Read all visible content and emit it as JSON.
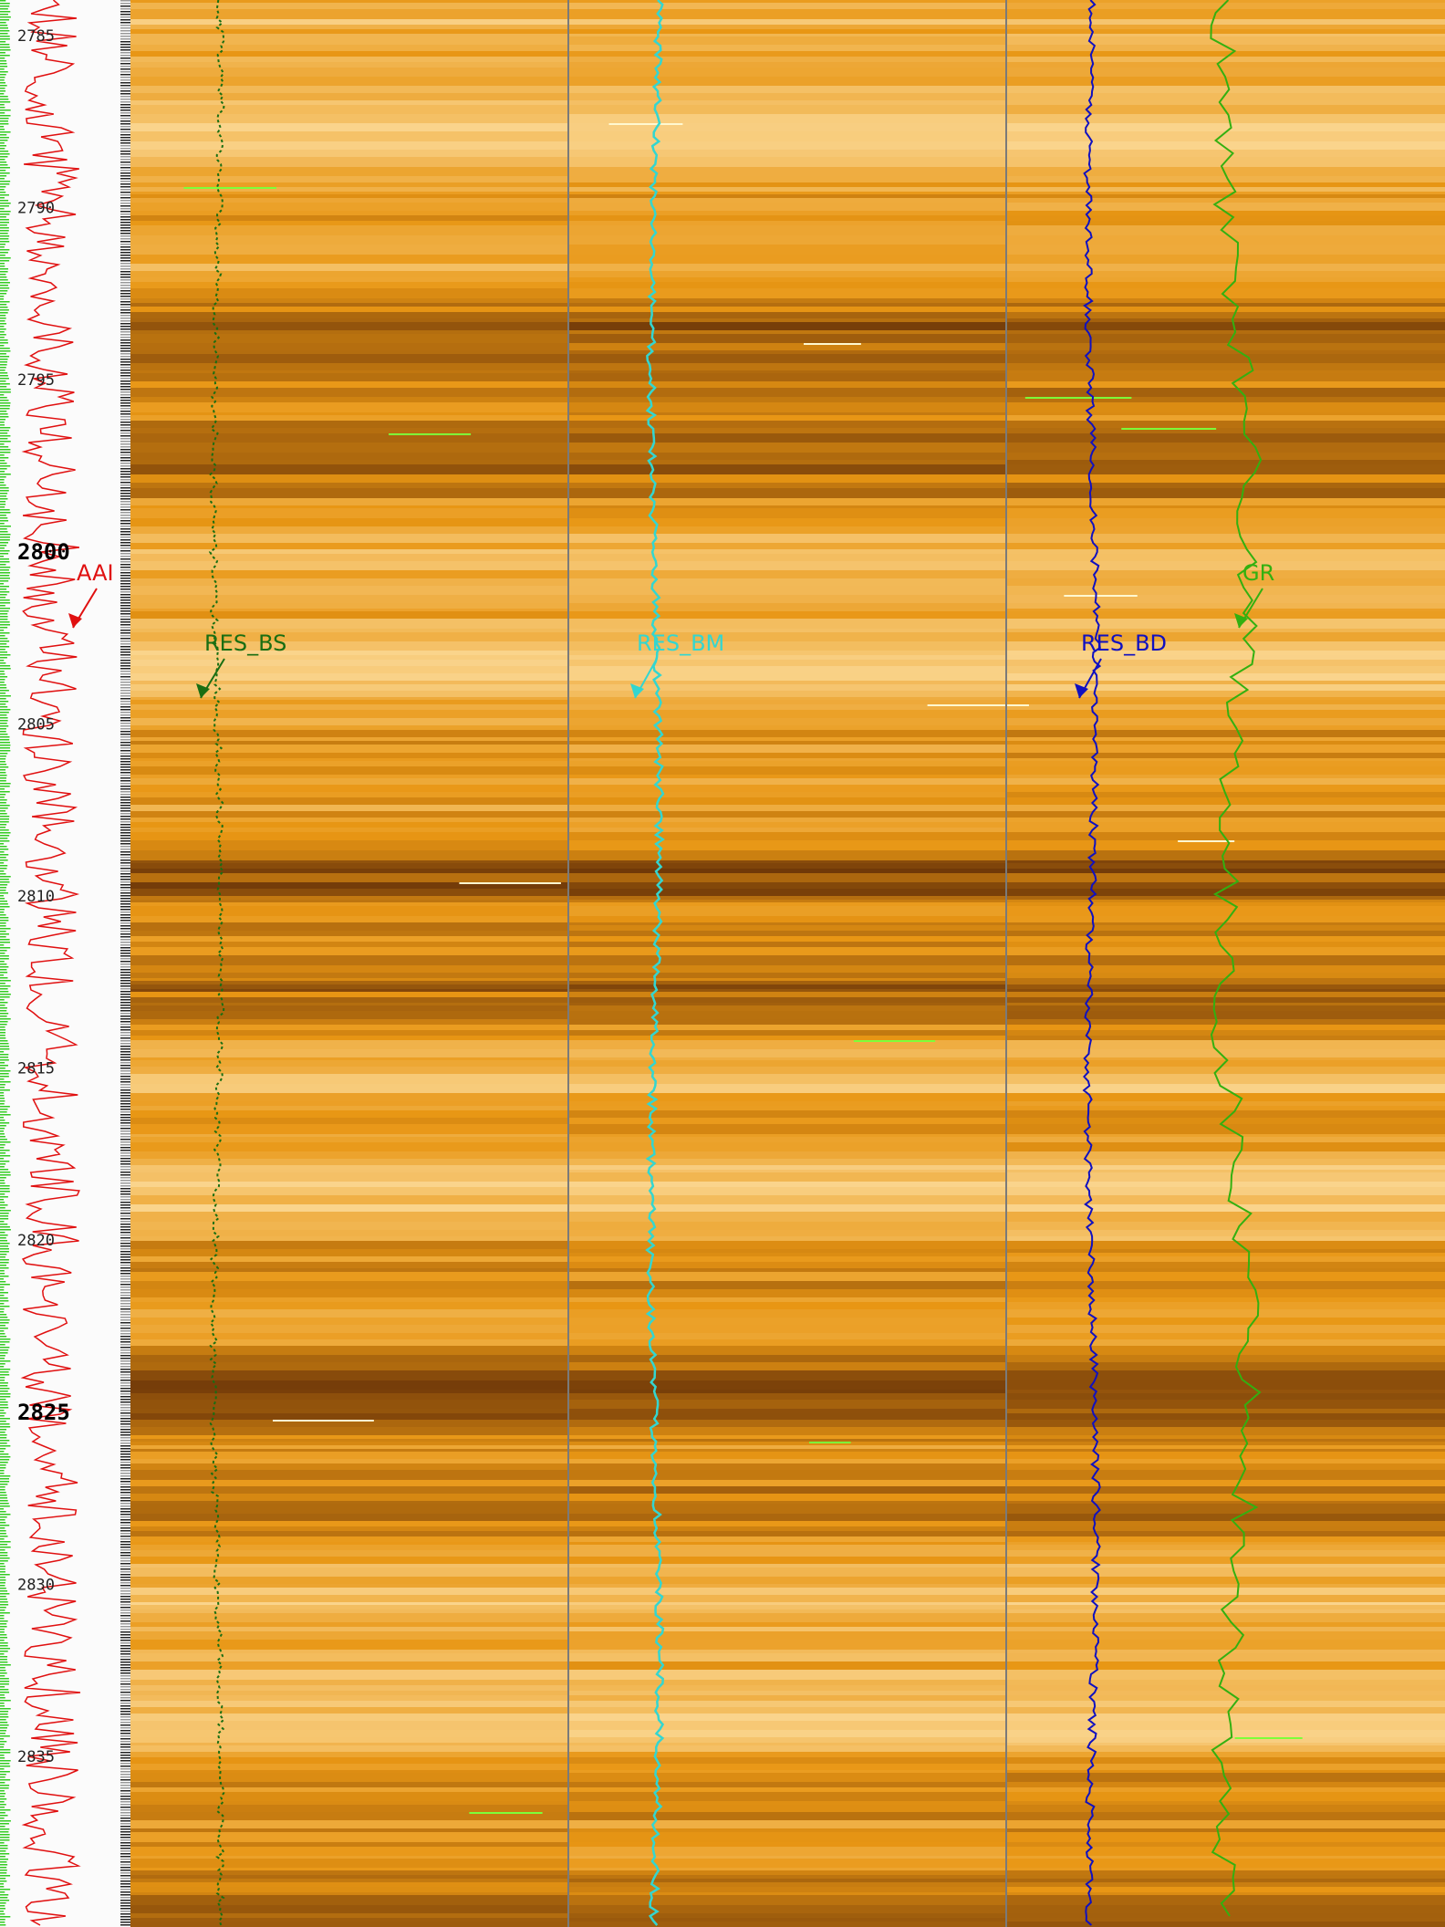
{
  "depth_labels": [
    "2785",
    "2790",
    "2795",
    "2800",
    "2805",
    "2810",
    "2815",
    "2820",
    "2825",
    "2830",
    "2835"
  ],
  "curves": [
    "AAI",
    "RES_BS",
    "RES_BM",
    "RES_BD",
    "GR"
  ]
}
